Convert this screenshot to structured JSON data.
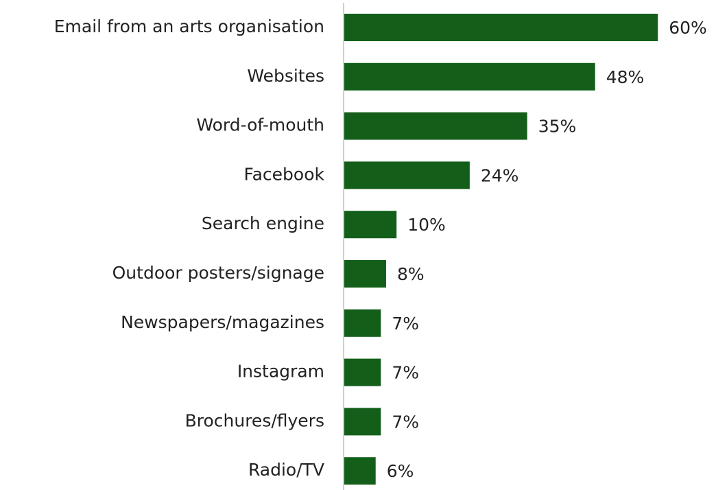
{
  "chart_data": {
    "type": "bar",
    "orientation": "horizontal",
    "categories": [
      "Email from an arts organisation",
      "Websites",
      "Word-of-mouth",
      "Facebook",
      "Search engine",
      "Outdoor posters/signage",
      "Newspapers/magazines",
      "Instagram",
      "Brochures/flyers",
      "Radio/TV"
    ],
    "values": [
      60,
      48,
      35,
      24,
      10,
      8,
      7,
      7,
      7,
      6
    ],
    "value_labels": [
      "60%",
      "48%",
      "35%",
      "24%",
      "10%",
      "8%",
      "7%",
      "7%",
      "7%",
      "6%"
    ],
    "color": "#135f1a"
  }
}
